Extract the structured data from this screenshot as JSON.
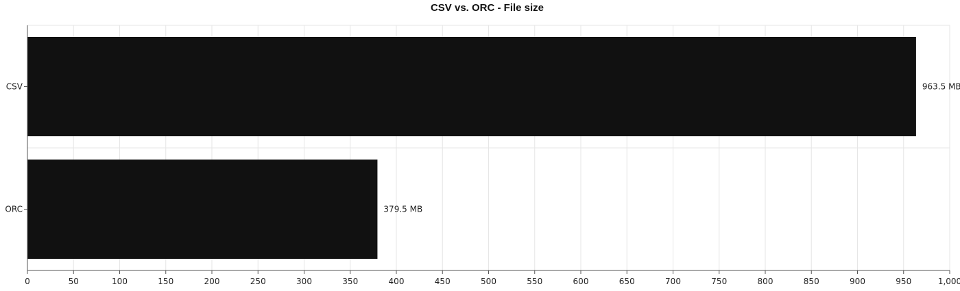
{
  "chart_data": {
    "type": "bar",
    "orientation": "horizontal",
    "title": "CSV vs. ORC - File size",
    "xlabel": "",
    "ylabel": "",
    "categories": [
      "CSV",
      "ORC"
    ],
    "values": [
      963.5,
      379.5
    ],
    "value_labels": [
      "963.5 MB",
      "379.5 MB"
    ],
    "xlim": [
      0,
      1000
    ],
    "x_ticks": [
      0,
      50,
      100,
      150,
      200,
      250,
      300,
      350,
      400,
      450,
      500,
      550,
      600,
      650,
      700,
      750,
      800,
      850,
      900,
      950,
      1000
    ],
    "x_tick_labels": [
      "0",
      "50",
      "100",
      "150",
      "200",
      "250",
      "300",
      "350",
      "400",
      "450",
      "500",
      "550",
      "600",
      "650",
      "700",
      "750",
      "800",
      "850",
      "900",
      "950",
      "1,000"
    ],
    "grid": true,
    "legend": "none",
    "colors": {
      "bar": "#111111",
      "grid": "#e6e6e6",
      "axis": "#555555"
    }
  }
}
